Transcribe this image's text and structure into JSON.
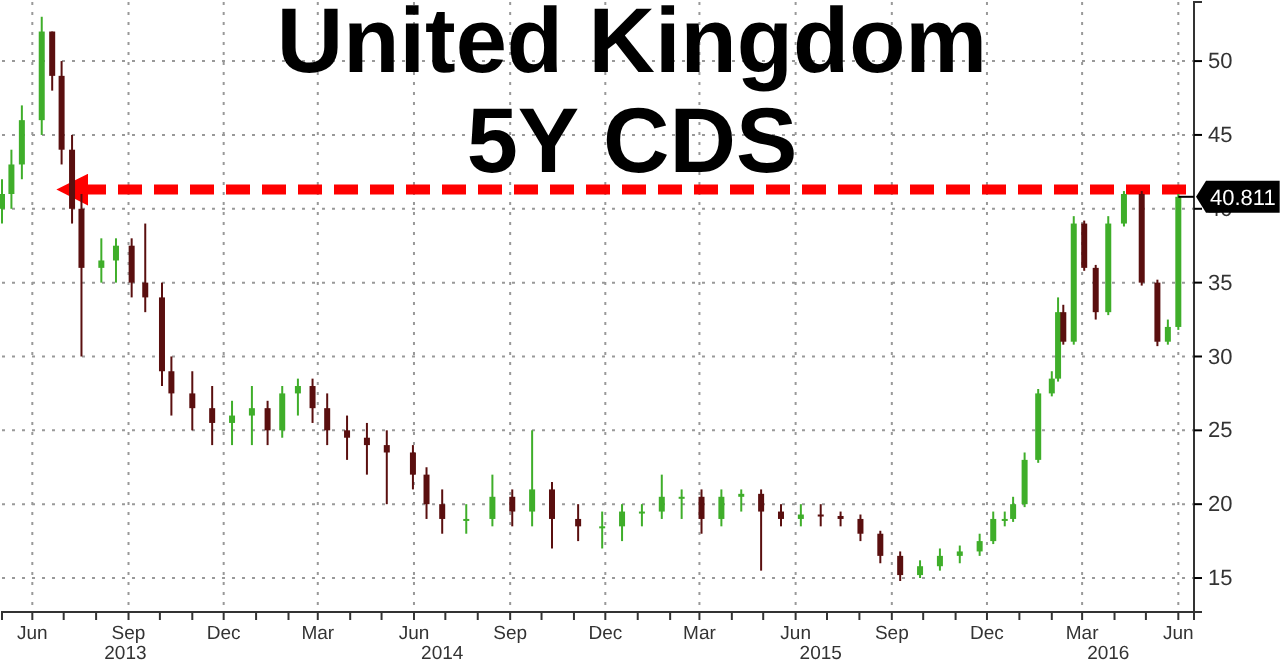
{
  "chart_data": {
    "type": "candlestick",
    "title": "United Kingdom",
    "subtitle": "5Y CDS",
    "x": [
      "2013-05-03",
      "2013-05-12",
      "2013-05-22",
      "2013-06-10",
      "2013-06-20",
      "2013-06-29",
      "2013-07-09",
      "2013-07-18",
      "2013-08-06",
      "2013-08-20",
      "2013-09-04",
      "2013-09-17",
      "2013-10-03",
      "2013-10-12",
      "2013-11-01",
      "2013-11-20",
      "2013-12-09",
      "2013-12-28",
      "2014-01-12",
      "2014-01-26",
      "2014-02-10",
      "2014-02-24",
      "2014-03-10",
      "2014-03-29",
      "2014-04-17",
      "2014-05-06",
      "2014-05-31",
      "2014-06-13",
      "2014-06-28",
      "2014-07-21",
      "2014-08-15",
      "2014-09-03",
      "2014-09-22",
      "2014-10-11",
      "2014-11-05",
      "2014-11-28",
      "2014-12-17",
      "2015-01-05",
      "2015-01-24",
      "2015-02-12",
      "2015-03-03",
      "2015-03-22",
      "2015-04-10",
      "2015-04-29",
      "2015-05-18",
      "2015-06-06",
      "2015-06-25",
      "2015-07-14",
      "2015-08-02",
      "2015-08-21",
      "2015-09-09",
      "2015-09-28",
      "2015-10-17",
      "2015-11-05",
      "2015-11-24",
      "2015-12-07",
      "2015-12-18",
      "2015-12-26",
      "2016-01-06",
      "2016-01-19",
      "2016-02-01",
      "2016-02-07",
      "2016-02-12",
      "2016-02-22",
      "2016-03-03",
      "2016-03-14",
      "2016-03-26",
      "2016-04-10",
      "2016-04-27",
      "2016-05-12",
      "2016-05-22",
      "2016-06-01"
    ],
    "ohlc": [
      [
        40,
        42,
        39,
        41
      ],
      [
        41,
        44,
        40,
        43
      ],
      [
        43,
        47,
        42,
        46
      ],
      [
        46,
        53,
        45,
        52
      ],
      [
        52,
        52,
        48,
        49
      ],
      [
        49,
        50,
        43,
        44
      ],
      [
        44,
        45,
        39,
        40
      ],
      [
        40,
        41,
        30,
        36
      ],
      [
        36,
        38,
        35,
        36.5
      ],
      [
        36.5,
        38,
        35,
        37.5
      ],
      [
        37.5,
        38,
        34,
        35
      ],
      [
        35,
        39,
        33,
        34
      ],
      [
        34,
        35,
        28,
        29
      ],
      [
        29,
        30,
        26,
        27.5
      ],
      [
        27.5,
        29,
        25,
        26.5
      ],
      [
        26.5,
        28,
        24,
        25.5
      ],
      [
        25.5,
        27,
        24,
        26
      ],
      [
        26,
        28,
        24,
        26.5
      ],
      [
        26.5,
        27,
        24,
        25
      ],
      [
        25,
        28,
        24.5,
        27.5
      ],
      [
        27.5,
        28.5,
        26,
        28
      ],
      [
        28,
        28.5,
        25.5,
        26.5
      ],
      [
        26.5,
        27.5,
        24,
        25
      ],
      [
        25,
        26,
        23,
        24.5
      ],
      [
        24.5,
        25.5,
        22,
        24
      ],
      [
        24,
        25,
        20,
        23.5
      ],
      [
        23.5,
        24,
        21,
        22
      ],
      [
        22,
        22.5,
        19,
        20
      ],
      [
        20,
        21,
        18,
        19
      ],
      [
        19,
        20,
        18,
        19
      ],
      [
        19,
        22,
        18.5,
        20.5
      ],
      [
        20.5,
        21,
        18.5,
        19.5
      ],
      [
        19.5,
        25,
        18.5,
        21
      ],
      [
        21,
        21.5,
        17,
        19
      ],
      [
        19,
        20,
        17.5,
        18.5
      ],
      [
        18.5,
        19.5,
        17,
        18.5
      ],
      [
        18.5,
        20,
        17.5,
        19.5
      ],
      [
        19.5,
        20,
        18.5,
        19.5
      ],
      [
        19.5,
        22,
        19,
        20.5
      ],
      [
        20.5,
        21,
        19,
        20.5
      ],
      [
        20.5,
        21,
        18,
        19
      ],
      [
        19,
        21,
        18.5,
        20.5
      ],
      [
        20.5,
        21,
        19.5,
        20.7
      ],
      [
        20.7,
        21,
        15.5,
        19.5
      ],
      [
        19.5,
        20,
        18.5,
        19
      ],
      [
        19,
        20,
        18.5,
        19.3
      ],
      [
        19.3,
        20,
        18.5,
        19.2
      ],
      [
        19.2,
        19.5,
        18.5,
        19
      ],
      [
        19,
        19.3,
        17.5,
        18
      ],
      [
        18,
        18.2,
        16,
        16.5
      ],
      [
        16.5,
        16.8,
        14.8,
        15.2
      ],
      [
        15.2,
        16.2,
        15,
        15.8
      ],
      [
        15.8,
        17,
        15.5,
        16.5
      ],
      [
        16.5,
        17.2,
        16,
        16.8
      ],
      [
        16.8,
        18,
        16.5,
        17.5
      ],
      [
        17.5,
        19.5,
        17.3,
        19
      ],
      [
        19,
        19.5,
        18.5,
        19
      ],
      [
        19,
        20.5,
        18.8,
        20
      ],
      [
        20,
        23.5,
        19.8,
        23
      ],
      [
        23,
        27.8,
        22.8,
        27.5
      ],
      [
        27.5,
        29,
        27.3,
        28.5
      ],
      [
        28.5,
        34,
        28.3,
        33
      ],
      [
        33,
        33.5,
        30.8,
        31
      ],
      [
        31,
        39.5,
        30.8,
        39
      ],
      [
        39,
        39.2,
        35.8,
        36
      ],
      [
        36,
        36.2,
        32.5,
        33
      ],
      [
        33,
        39.5,
        32.8,
        39
      ],
      [
        39,
        41.2,
        38.8,
        41
      ],
      [
        41,
        41.2,
        34.8,
        35
      ],
      [
        35,
        35.2,
        30.7,
        31
      ],
      [
        31,
        32.5,
        30.8,
        32
      ],
      [
        32,
        41,
        31.8,
        40.811
      ]
    ],
    "xlim": [
      "2013-05-03",
      "2016-06-16"
    ],
    "xticks": [
      {
        "value": "2013-06-01",
        "label": "Jun"
      },
      {
        "value": "2013-07-01",
        "label": null
      },
      {
        "value": "2013-08-01",
        "label": null
      },
      {
        "value": "2013-09-01",
        "label": "Sep"
      },
      {
        "value": "2013-10-01",
        "label": null
      },
      {
        "value": "2013-11-01",
        "label": null
      },
      {
        "value": "2013-12-01",
        "label": "Dec"
      },
      {
        "value": "2014-01-01",
        "label": null
      },
      {
        "value": "2014-02-01",
        "label": null
      },
      {
        "value": "2014-03-01",
        "label": "Mar"
      },
      {
        "value": "2014-04-01",
        "label": null
      },
      {
        "value": "2014-05-01",
        "label": null
      },
      {
        "value": "2014-06-01",
        "label": "Jun"
      },
      {
        "value": "2014-07-01",
        "label": null
      },
      {
        "value": "2014-08-01",
        "label": null
      },
      {
        "value": "2014-09-01",
        "label": "Sep"
      },
      {
        "value": "2014-10-01",
        "label": null
      },
      {
        "value": "2014-11-01",
        "label": null
      },
      {
        "value": "2014-12-01",
        "label": "Dec"
      },
      {
        "value": "2015-01-01",
        "label": null
      },
      {
        "value": "2015-02-01",
        "label": null
      },
      {
        "value": "2015-03-01",
        "label": "Mar"
      },
      {
        "value": "2015-04-01",
        "label": null
      },
      {
        "value": "2015-05-01",
        "label": null
      },
      {
        "value": "2015-06-01",
        "label": "Jun"
      },
      {
        "value": "2015-07-01",
        "label": null
      },
      {
        "value": "2015-08-01",
        "label": null
      },
      {
        "value": "2015-09-01",
        "label": "Sep"
      },
      {
        "value": "2015-10-01",
        "label": null
      },
      {
        "value": "2015-11-01",
        "label": null
      },
      {
        "value": "2015-12-01",
        "label": "Dec"
      },
      {
        "value": "2016-01-01",
        "label": null
      },
      {
        "value": "2016-02-01",
        "label": null
      },
      {
        "value": "2016-03-01",
        "label": "Mar"
      },
      {
        "value": "2016-04-01",
        "label": null
      },
      {
        "value": "2016-05-01",
        "label": null
      },
      {
        "value": "2016-06-01",
        "label": "Jun"
      }
    ],
    "x2lim": [
      "2013-05-03",
      "2016-06-16"
    ],
    "x2ticks": [
      {
        "value": "2013-08-29",
        "label": "2013"
      },
      {
        "value": "2014-06-28",
        "label": "2014"
      },
      {
        "value": "2015-06-25",
        "label": "2015"
      },
      {
        "value": "2016-03-26",
        "label": "2016"
      }
    ],
    "ylim": [
      12.7,
      54
    ],
    "yticks": [
      15,
      20,
      25,
      30,
      35,
      40,
      45,
      50
    ],
    "grid": true,
    "ref_lines": [
      {
        "axis": "y",
        "value": 41.3,
        "color": "#ff0000",
        "line_style": "dashed"
      }
    ],
    "annotations": [
      {
        "text": "40.811",
        "x": "2016-06-01",
        "y": 40.811
      }
    ]
  }
}
